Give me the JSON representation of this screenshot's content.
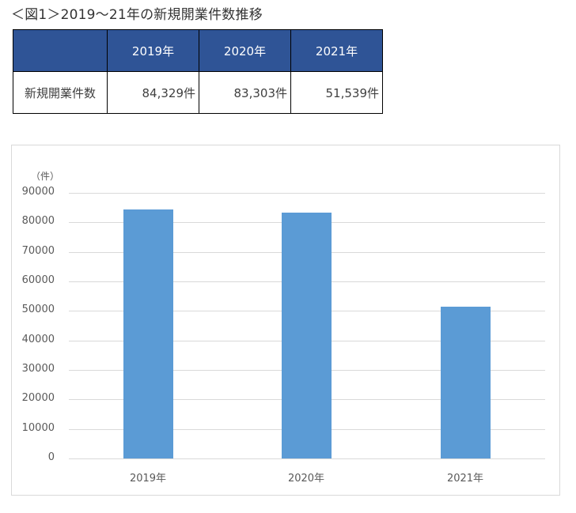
{
  "title": "＜図1＞2019〜21年の新規開業件数推移",
  "table": {
    "headers": [
      "",
      "2019年",
      "2020年",
      "2021年"
    ],
    "row_label": "新規開業件数",
    "values": [
      "84,329件",
      "83,303件",
      "51,539件"
    ]
  },
  "colors": {
    "table_header": "#2F5496",
    "bar": "#5B9BD5",
    "grid": "#D9D9D9"
  },
  "chart_data": {
    "type": "bar",
    "title": "",
    "categories": [
      "2019年",
      "2020年",
      "2021年"
    ],
    "values": [
      84329,
      83303,
      51539
    ],
    "xlabel": "",
    "ylabel": "（件）",
    "ylim": [
      0,
      90000
    ],
    "yticks": [
      "0",
      "10000",
      "20000",
      "30000",
      "40000",
      "50000",
      "60000",
      "70000",
      "80000",
      "90000"
    ],
    "grid": true,
    "legend": false
  }
}
